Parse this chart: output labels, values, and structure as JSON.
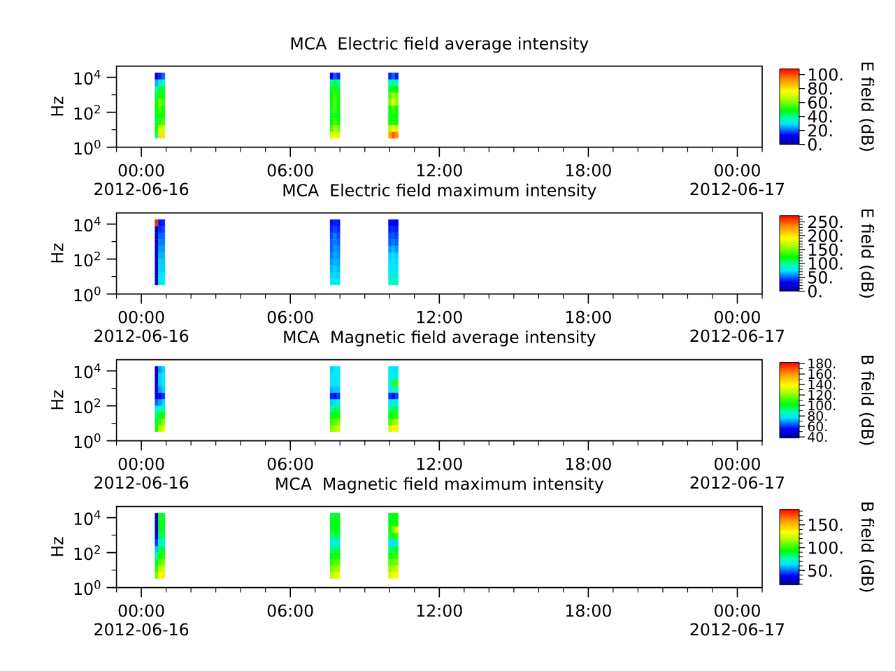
{
  "chart_data": [
    {
      "type": "scatter",
      "title": "MCA  Electric field average intensity",
      "ylabel": "Hz",
      "clabel": "E field (dB)",
      "marker": "square",
      "log": "y",
      "xlim": [
        "2012-06-15T23:00",
        "2012-06-17T01:00"
      ],
      "xticks": [
        {
          "value": "2012-06-15T23:00",
          "label": null
        },
        {
          "value": "2012-06-16T00:00",
          "label": "00:00 2012-06-16"
        },
        {
          "value": "2012-06-16T01:00",
          "label": null
        },
        {
          "value": "2012-06-16T02:00",
          "label": null
        },
        {
          "value": "2012-06-16T03:00",
          "label": null
        },
        {
          "value": "2012-06-16T04:00",
          "label": null
        },
        {
          "value": "2012-06-16T05:00",
          "label": null
        },
        {
          "value": "2012-06-16T06:00",
          "label": "06:00"
        },
        {
          "value": "2012-06-16T07:00",
          "label": null
        },
        {
          "value": "2012-06-16T08:00",
          "label": null
        },
        {
          "value": "2012-06-16T09:00",
          "label": null
        },
        {
          "value": "2012-06-16T10:00",
          "label": null
        },
        {
          "value": "2012-06-16T11:00",
          "label": null
        },
        {
          "value": "2012-06-16T12:00",
          "label": "12:00"
        },
        {
          "value": "2012-06-16T13:00",
          "label": null
        },
        {
          "value": "2012-06-16T14:00",
          "label": null
        },
        {
          "value": "2012-06-16T15:00",
          "label": null
        },
        {
          "value": "2012-06-16T16:00",
          "label": null
        },
        {
          "value": "2012-06-16T17:00",
          "label": null
        },
        {
          "value": "2012-06-16T18:00",
          "label": "18:00"
        },
        {
          "value": "2012-06-16T19:00",
          "label": null
        },
        {
          "value": "2012-06-16T20:00",
          "label": null
        },
        {
          "value": "2012-06-16T21:00",
          "label": null
        },
        {
          "value": "2012-06-16T22:00",
          "label": null
        },
        {
          "value": "2012-06-16T23:00",
          "label": null
        },
        {
          "value": "2012-06-17T00:00",
          "label": "00:00 2012-06-17"
        },
        {
          "value": "2012-06-17T01:00",
          "label": null
        }
      ],
      "ylim": [
        1,
        44000
      ],
      "yticks": [
        {
          "value": 1,
          "label": "10$^{0}$"
        },
        {
          "value": 10,
          "label": null
        },
        {
          "value": 100,
          "label": "10$^{2}$"
        },
        {
          "value": 1000,
          "label": null
        },
        {
          "value": 10000,
          "label": "10$^{4}$"
        }
      ],
      "clim": [
        0,
        108
      ],
      "cticks": [
        {
          "value": 0,
          "label": "0."
        },
        {
          "value": 20,
          "label": "20."
        },
        {
          "value": 40,
          "label": "40."
        },
        {
          "value": 60,
          "label": "60."
        },
        {
          "value": 80,
          "label": "80."
        },
        {
          "value": 100,
          "label": "100."
        }
      ],
      "x": [
        "2012-06-16T00:37",
        "2012-06-16T00:37",
        "2012-06-16T00:37",
        "2012-06-16T00:37",
        "2012-06-16T00:37",
        "2012-06-16T00:37",
        "2012-06-16T00:37",
        "2012-06-16T00:37",
        "2012-06-16T00:37",
        "2012-06-16T00:37",
        "2012-06-16T00:45",
        "2012-06-16T00:45",
        "2012-06-16T00:45",
        "2012-06-16T00:45",
        "2012-06-16T00:45",
        "2012-06-16T00:45",
        "2012-06-16T00:45",
        "2012-06-16T00:45",
        "2012-06-16T00:45",
        "2012-06-16T00:45",
        "2012-06-16T00:53",
        "2012-06-16T00:53",
        "2012-06-16T00:53",
        "2012-06-16T00:53",
        "2012-06-16T00:53",
        "2012-06-16T00:53",
        "2012-06-16T00:53",
        "2012-06-16T00:53",
        "2012-06-16T00:53",
        "2012-06-16T00:53",
        "2012-06-16T07:40",
        "2012-06-16T07:40",
        "2012-06-16T07:40",
        "2012-06-16T07:40",
        "2012-06-16T07:40",
        "2012-06-16T07:40",
        "2012-06-16T07:40",
        "2012-06-16T07:40",
        "2012-06-16T07:40",
        "2012-06-16T07:40",
        "2012-06-16T07:48",
        "2012-06-16T07:48",
        "2012-06-16T07:48",
        "2012-06-16T07:48",
        "2012-06-16T07:48",
        "2012-06-16T07:48",
        "2012-06-16T07:48",
        "2012-06-16T07:48",
        "2012-06-16T07:48",
        "2012-06-16T07:48",
        "2012-06-16T07:56",
        "2012-06-16T07:56",
        "2012-06-16T07:56",
        "2012-06-16T07:56",
        "2012-06-16T07:56",
        "2012-06-16T07:56",
        "2012-06-16T07:56",
        "2012-06-16T07:56",
        "2012-06-16T07:56",
        "2012-06-16T07:56",
        "2012-06-16T10:01",
        "2012-06-16T10:01",
        "2012-06-16T10:01",
        "2012-06-16T10:01",
        "2012-06-16T10:01",
        "2012-06-16T10:01",
        "2012-06-16T10:01",
        "2012-06-16T10:01",
        "2012-06-16T10:01",
        "2012-06-16T10:01",
        "2012-06-16T10:09",
        "2012-06-16T10:09",
        "2012-06-16T10:09",
        "2012-06-16T10:09",
        "2012-06-16T10:09",
        "2012-06-16T10:09",
        "2012-06-16T10:09",
        "2012-06-16T10:09",
        "2012-06-16T10:09",
        "2012-06-16T10:09",
        "2012-06-16T10:17",
        "2012-06-16T10:17",
        "2012-06-16T10:17",
        "2012-06-16T10:17",
        "2012-06-16T10:17",
        "2012-06-16T10:17",
        "2012-06-16T10:17",
        "2012-06-16T10:17",
        "2012-06-16T10:17",
        "2012-06-16T10:17"
      ],
      "values": [
        5,
        11.9,
        28.2,
        66.8,
        158,
        376,
        891,
        2110,
        5010,
        11900,
        5,
        11.9,
        28.2,
        66.8,
        158,
        376,
        891,
        2110,
        5010,
        11900,
        5,
        11.9,
        28.2,
        66.8,
        158,
        376,
        891,
        2110,
        5010,
        11900,
        5,
        11.9,
        28.2,
        66.8,
        158,
        376,
        891,
        2110,
        5010,
        11900,
        5,
        11.9,
        28.2,
        66.8,
        158,
        376,
        891,
        2110,
        5010,
        11900,
        5,
        11.9,
        28.2,
        66.8,
        158,
        376,
        891,
        2110,
        5010,
        11900,
        5,
        11.9,
        28.2,
        66.8,
        158,
        376,
        891,
        2110,
        5010,
        11900,
        5,
        11.9,
        28.2,
        66.8,
        158,
        376,
        891,
        2110,
        5010,
        11900,
        5,
        11.9,
        28.2,
        66.8,
        158,
        376,
        891,
        2110,
        5010,
        11900
      ],
      "cvalues": [
        40,
        50,
        45,
        48,
        48,
        48,
        45,
        40,
        25,
        8,
        80,
        70,
        52,
        50,
        55,
        60,
        50,
        45,
        30,
        15,
        80,
        70,
        55,
        50,
        50,
        55,
        50,
        45,
        38,
        20,
        70,
        55,
        48,
        45,
        45,
        48,
        48,
        45,
        40,
        10,
        75,
        65,
        55,
        52,
        55,
        58,
        55,
        50,
        45,
        20,
        72,
        60,
        50,
        48,
        48,
        50,
        50,
        45,
        40,
        15,
        90,
        65,
        50,
        48,
        50,
        60,
        55,
        45,
        35,
        15,
        98,
        75,
        52,
        50,
        55,
        72,
        65,
        50,
        40,
        20,
        92,
        70,
        50,
        48,
        50,
        62,
        60,
        48,
        35,
        15
      ]
    },
    {
      "type": "scatter",
      "title": "MCA  Electric field maximum intensity",
      "ylabel": "Hz",
      "clabel": "E field (dB)",
      "marker": "square",
      "log": "y",
      "xlim": [
        "2012-06-15T23:00",
        "2012-06-17T01:00"
      ],
      "xticks": [
        {
          "value": "2012-06-15T23:00",
          "label": null
        },
        {
          "value": "2012-06-16T00:00",
          "label": "00:00 2012-06-16"
        },
        {
          "value": "2012-06-16T01:00",
          "label": null
        },
        {
          "value": "2012-06-16T02:00",
          "label": null
        },
        {
          "value": "2012-06-16T03:00",
          "label": null
        },
        {
          "value": "2012-06-16T04:00",
          "label": null
        },
        {
          "value": "2012-06-16T05:00",
          "label": null
        },
        {
          "value": "2012-06-16T06:00",
          "label": "06:00"
        },
        {
          "value": "2012-06-16T07:00",
          "label": null
        },
        {
          "value": "2012-06-16T08:00",
          "label": null
        },
        {
          "value": "2012-06-16T09:00",
          "label": null
        },
        {
          "value": "2012-06-16T10:00",
          "label": null
        },
        {
          "value": "2012-06-16T11:00",
          "label": null
        },
        {
          "value": "2012-06-16T12:00",
          "label": "12:00"
        },
        {
          "value": "2012-06-16T13:00",
          "label": null
        },
        {
          "value": "2012-06-16T14:00",
          "label": null
        },
        {
          "value": "2012-06-16T15:00",
          "label": null
        },
        {
          "value": "2012-06-16T16:00",
          "label": null
        },
        {
          "value": "2012-06-16T17:00",
          "label": null
        },
        {
          "value": "2012-06-16T18:00",
          "label": "18:00"
        },
        {
          "value": "2012-06-16T19:00",
          "label": null
        },
        {
          "value": "2012-06-16T20:00",
          "label": null
        },
        {
          "value": "2012-06-16T21:00",
          "label": null
        },
        {
          "value": "2012-06-16T22:00",
          "label": null
        },
        {
          "value": "2012-06-16T23:00",
          "label": null
        },
        {
          "value": "2012-06-17T00:00",
          "label": "00:00 2012-06-17"
        },
        {
          "value": "2012-06-17T01:00",
          "label": null
        }
      ],
      "ylim": [
        1,
        44000
      ],
      "yticks": [
        {
          "value": 1,
          "label": "10$^{0}$"
        },
        {
          "value": 10,
          "label": null
        },
        {
          "value": 100,
          "label": "10$^{2}$"
        },
        {
          "value": 1000,
          "label": null
        },
        {
          "value": 10000,
          "label": "10$^{4}$"
        }
      ],
      "clim": [
        0,
        272
      ],
      "cticks": [
        {
          "value": 0,
          "label": "0."
        },
        {
          "value": 10,
          "label": null
        },
        {
          "value": 20,
          "label": null
        },
        {
          "value": 30,
          "label": null
        },
        {
          "value": 40,
          "label": null
        },
        {
          "value": 50,
          "label": "50."
        },
        {
          "value": 60,
          "label": null
        },
        {
          "value": 70,
          "label": null
        },
        {
          "value": 80,
          "label": null
        },
        {
          "value": 90,
          "label": null
        },
        {
          "value": 100,
          "label": "100."
        },
        {
          "value": 110,
          "label": null
        },
        {
          "value": 120,
          "label": null
        },
        {
          "value": 130,
          "label": null
        },
        {
          "value": 140,
          "label": null
        },
        {
          "value": 150,
          "label": "150."
        },
        {
          "value": 160,
          "label": null
        },
        {
          "value": 170,
          "label": null
        },
        {
          "value": 180,
          "label": null
        },
        {
          "value": 190,
          "label": null
        },
        {
          "value": 200,
          "label": "200."
        },
        {
          "value": 210,
          "label": null
        },
        {
          "value": 220,
          "label": null
        },
        {
          "value": 230,
          "label": null
        },
        {
          "value": 240,
          "label": null
        },
        {
          "value": 250,
          "label": "250."
        },
        {
          "value": 260,
          "label": null
        },
        {
          "value": 270,
          "label": null
        }
      ],
      "x": [
        "2012-06-16T00:37",
        "2012-06-16T00:37",
        "2012-06-16T00:37",
        "2012-06-16T00:37",
        "2012-06-16T00:37",
        "2012-06-16T00:37",
        "2012-06-16T00:37",
        "2012-06-16T00:37",
        "2012-06-16T00:37",
        "2012-06-16T00:37",
        "2012-06-16T00:45",
        "2012-06-16T00:45",
        "2012-06-16T00:45",
        "2012-06-16T00:45",
        "2012-06-16T00:45",
        "2012-06-16T00:45",
        "2012-06-16T00:45",
        "2012-06-16T00:45",
        "2012-06-16T00:45",
        "2012-06-16T00:45",
        "2012-06-16T00:53",
        "2012-06-16T00:53",
        "2012-06-16T00:53",
        "2012-06-16T00:53",
        "2012-06-16T00:53",
        "2012-06-16T00:53",
        "2012-06-16T00:53",
        "2012-06-16T00:53",
        "2012-06-16T00:53",
        "2012-06-16T00:53",
        "2012-06-16T07:40",
        "2012-06-16T07:40",
        "2012-06-16T07:40",
        "2012-06-16T07:40",
        "2012-06-16T07:40",
        "2012-06-16T07:40",
        "2012-06-16T07:40",
        "2012-06-16T07:40",
        "2012-06-16T07:40",
        "2012-06-16T07:40",
        "2012-06-16T07:48",
        "2012-06-16T07:48",
        "2012-06-16T07:48",
        "2012-06-16T07:48",
        "2012-06-16T07:48",
        "2012-06-16T07:48",
        "2012-06-16T07:48",
        "2012-06-16T07:48",
        "2012-06-16T07:48",
        "2012-06-16T07:48",
        "2012-06-16T07:56",
        "2012-06-16T07:56",
        "2012-06-16T07:56",
        "2012-06-16T07:56",
        "2012-06-16T07:56",
        "2012-06-16T07:56",
        "2012-06-16T07:56",
        "2012-06-16T07:56",
        "2012-06-16T07:56",
        "2012-06-16T07:56",
        "2012-06-16T10:01",
        "2012-06-16T10:01",
        "2012-06-16T10:01",
        "2012-06-16T10:01",
        "2012-06-16T10:01",
        "2012-06-16T10:01",
        "2012-06-16T10:01",
        "2012-06-16T10:01",
        "2012-06-16T10:01",
        "2012-06-16T10:01",
        "2012-06-16T10:09",
        "2012-06-16T10:09",
        "2012-06-16T10:09",
        "2012-06-16T10:09",
        "2012-06-16T10:09",
        "2012-06-16T10:09",
        "2012-06-16T10:09",
        "2012-06-16T10:09",
        "2012-06-16T10:09",
        "2012-06-16T10:09",
        "2012-06-16T10:17",
        "2012-06-16T10:17",
        "2012-06-16T10:17",
        "2012-06-16T10:17",
        "2012-06-16T10:17",
        "2012-06-16T10:17",
        "2012-06-16T10:17",
        "2012-06-16T10:17",
        "2012-06-16T10:17",
        "2012-06-16T10:17"
      ],
      "values": [
        5,
        11.9,
        28.2,
        66.8,
        158,
        376,
        891,
        2110,
        5010,
        11900,
        5,
        11.9,
        28.2,
        66.8,
        158,
        376,
        891,
        2110,
        5010,
        11900,
        5,
        11.9,
        28.2,
        66.8,
        158,
        376,
        891,
        2110,
        5010,
        11900,
        5,
        11.9,
        28.2,
        66.8,
        158,
        376,
        891,
        2110,
        5010,
        11900,
        5,
        11.9,
        28.2,
        66.8,
        158,
        376,
        891,
        2110,
        5010,
        11900,
        5,
        11.9,
        28.2,
        66.8,
        158,
        376,
        891,
        2110,
        5010,
        11900,
        5,
        11.9,
        28.2,
        66.8,
        158,
        376,
        891,
        2110,
        5010,
        11900,
        5,
        11.9,
        28.2,
        66.8,
        158,
        376,
        891,
        2110,
        5010,
        11900,
        5,
        11.9,
        28.2,
        66.8,
        158,
        376,
        891,
        2110,
        5010,
        11900
      ],
      "cvalues": [
        15,
        15,
        15,
        15,
        15,
        15,
        15,
        15,
        15,
        260,
        80,
        75,
        72,
        70,
        65,
        60,
        55,
        50,
        40,
        35,
        78,
        75,
        70,
        68,
        65,
        60,
        55,
        50,
        45,
        38,
        75,
        70,
        65,
        60,
        55,
        50,
        50,
        45,
        40,
        35,
        78,
        72,
        70,
        65,
        62,
        60,
        55,
        55,
        45,
        38,
        75,
        70,
        65,
        62,
        58,
        55,
        50,
        45,
        40,
        35,
        90,
        80,
        75,
        72,
        70,
        60,
        50,
        45,
        38,
        30,
        95,
        82,
        78,
        75,
        72,
        65,
        55,
        48,
        40,
        32,
        90,
        80,
        75,
        72,
        70,
        60,
        50,
        45,
        38,
        30
      ]
    },
    {
      "type": "scatter",
      "title": "MCA  Magnetic field average intensity",
      "ylabel": "Hz",
      "clabel": "B field (dB)",
      "marker": "square",
      "log": "y",
      "xlim": [
        "2012-06-15T23:00",
        "2012-06-17T01:00"
      ],
      "xticks": [
        {
          "value": "2012-06-15T23:00",
          "label": null
        },
        {
          "value": "2012-06-16T00:00",
          "label": "00:00 2012-06-16"
        },
        {
          "value": "2012-06-16T01:00",
          "label": null
        },
        {
          "value": "2012-06-16T02:00",
          "label": null
        },
        {
          "value": "2012-06-16T03:00",
          "label": null
        },
        {
          "value": "2012-06-16T04:00",
          "label": null
        },
        {
          "value": "2012-06-16T05:00",
          "label": null
        },
        {
          "value": "2012-06-16T06:00",
          "label": "06:00"
        },
        {
          "value": "2012-06-16T07:00",
          "label": null
        },
        {
          "value": "2012-06-16T08:00",
          "label": null
        },
        {
          "value": "2012-06-16T09:00",
          "label": null
        },
        {
          "value": "2012-06-16T10:00",
          "label": null
        },
        {
          "value": "2012-06-16T11:00",
          "label": null
        },
        {
          "value": "2012-06-16T12:00",
          "label": "12:00"
        },
        {
          "value": "2012-06-16T13:00",
          "label": null
        },
        {
          "value": "2012-06-16T14:00",
          "label": null
        },
        {
          "value": "2012-06-16T15:00",
          "label": null
        },
        {
          "value": "2012-06-16T16:00",
          "label": null
        },
        {
          "value": "2012-06-16T17:00",
          "label": null
        },
        {
          "value": "2012-06-16T18:00",
          "label": "18:00"
        },
        {
          "value": "2012-06-16T19:00",
          "label": null
        },
        {
          "value": "2012-06-16T20:00",
          "label": null
        },
        {
          "value": "2012-06-16T21:00",
          "label": null
        },
        {
          "value": "2012-06-16T22:00",
          "label": null
        },
        {
          "value": "2012-06-16T23:00",
          "label": null
        },
        {
          "value": "2012-06-17T00:00",
          "label": "00:00 2012-06-17"
        },
        {
          "value": "2012-06-17T01:00",
          "label": null
        }
      ],
      "ylim": [
        1,
        44000
      ],
      "yticks": [
        {
          "value": 1,
          "label": "10$^{0}$"
        },
        {
          "value": 10,
          "label": null
        },
        {
          "value": 100,
          "label": "10$^{2}$"
        },
        {
          "value": 1000,
          "label": null
        },
        {
          "value": 10000,
          "label": "10$^{4}$"
        }
      ],
      "clim": [
        38,
        182
      ],
      "cticks": [
        {
          "value": 40,
          "label": "40."
        },
        {
          "value": 50,
          "label": null
        },
        {
          "value": 60,
          "label": "60."
        },
        {
          "value": 70,
          "label": null
        },
        {
          "value": 80,
          "label": "80."
        },
        {
          "value": 90,
          "label": null
        },
        {
          "value": 100,
          "label": "100."
        },
        {
          "value": 110,
          "label": null
        },
        {
          "value": 120,
          "label": "120."
        },
        {
          "value": 130,
          "label": null
        },
        {
          "value": 140,
          "label": "140."
        },
        {
          "value": 150,
          "label": null
        },
        {
          "value": 160,
          "label": "160."
        },
        {
          "value": 170,
          "label": null
        },
        {
          "value": 180,
          "label": "180."
        }
      ],
      "x": [
        "2012-06-16T00:37",
        "2012-06-16T00:37",
        "2012-06-16T00:37",
        "2012-06-16T00:37",
        "2012-06-16T00:37",
        "2012-06-16T00:37",
        "2012-06-16T00:37",
        "2012-06-16T00:37",
        "2012-06-16T00:37",
        "2012-06-16T00:37",
        "2012-06-16T00:45",
        "2012-06-16T00:45",
        "2012-06-16T00:45",
        "2012-06-16T00:45",
        "2012-06-16T00:45",
        "2012-06-16T00:45",
        "2012-06-16T00:45",
        "2012-06-16T00:45",
        "2012-06-16T00:45",
        "2012-06-16T00:45",
        "2012-06-16T00:53",
        "2012-06-16T00:53",
        "2012-06-16T00:53",
        "2012-06-16T00:53",
        "2012-06-16T00:53",
        "2012-06-16T00:53",
        "2012-06-16T00:53",
        "2012-06-16T00:53",
        "2012-06-16T00:53",
        "2012-06-16T00:53",
        "2012-06-16T07:40",
        "2012-06-16T07:40",
        "2012-06-16T07:40",
        "2012-06-16T07:40",
        "2012-06-16T07:40",
        "2012-06-16T07:40",
        "2012-06-16T07:40",
        "2012-06-16T07:40",
        "2012-06-16T07:40",
        "2012-06-16T07:40",
        "2012-06-16T07:48",
        "2012-06-16T07:48",
        "2012-06-16T07:48",
        "2012-06-16T07:48",
        "2012-06-16T07:48",
        "2012-06-16T07:48",
        "2012-06-16T07:48",
        "2012-06-16T07:48",
        "2012-06-16T07:48",
        "2012-06-16T07:48",
        "2012-06-16T07:56",
        "2012-06-16T07:56",
        "2012-06-16T07:56",
        "2012-06-16T07:56",
        "2012-06-16T07:56",
        "2012-06-16T07:56",
        "2012-06-16T07:56",
        "2012-06-16T07:56",
        "2012-06-16T07:56",
        "2012-06-16T07:56",
        "2012-06-16T10:01",
        "2012-06-16T10:01",
        "2012-06-16T10:01",
        "2012-06-16T10:01",
        "2012-06-16T10:01",
        "2012-06-16T10:01",
        "2012-06-16T10:01",
        "2012-06-16T10:01",
        "2012-06-16T10:01",
        "2012-06-16T10:01",
        "2012-06-16T10:09",
        "2012-06-16T10:09",
        "2012-06-16T10:09",
        "2012-06-16T10:09",
        "2012-06-16T10:09",
        "2012-06-16T10:09",
        "2012-06-16T10:09",
        "2012-06-16T10:09",
        "2012-06-16T10:09",
        "2012-06-16T10:09",
        "2012-06-16T10:17",
        "2012-06-16T10:17",
        "2012-06-16T10:17",
        "2012-06-16T10:17",
        "2012-06-16T10:17",
        "2012-06-16T10:17",
        "2012-06-16T10:17",
        "2012-06-16T10:17",
        "2012-06-16T10:17",
        "2012-06-16T10:17"
      ],
      "values": [
        5,
        11.9,
        28.2,
        66.8,
        158,
        376,
        891,
        2110,
        5010,
        11900,
        5,
        11.9,
        28.2,
        66.8,
        158,
        376,
        891,
        2110,
        5010,
        11900,
        5,
        11.9,
        28.2,
        66.8,
        158,
        376,
        891,
        2110,
        5010,
        11900,
        5,
        11.9,
        28.2,
        66.8,
        158,
        376,
        891,
        2110,
        5010,
        11900,
        5,
        11.9,
        28.2,
        66.8,
        158,
        376,
        891,
        2110,
        5010,
        11900,
        5,
        11.9,
        28.2,
        66.8,
        158,
        376,
        891,
        2110,
        5010,
        11900,
        5,
        11.9,
        28.2,
        66.8,
        158,
        376,
        891,
        2110,
        5010,
        11900,
        5,
        11.9,
        28.2,
        66.8,
        158,
        376,
        891,
        2110,
        5010,
        11900,
        5,
        11.9,
        28.2,
        66.8,
        158,
        376,
        891,
        2110,
        5010,
        11900
      ],
      "cvalues": [
        105,
        100,
        95,
        80,
        65,
        50,
        52,
        48,
        45,
        44,
        125,
        110,
        100,
        85,
        70,
        55,
        70,
        75,
        75,
        70,
        135,
        120,
        105,
        90,
        75,
        60,
        75,
        78,
        78,
        75,
        120,
        110,
        100,
        90,
        75,
        58,
        72,
        77,
        77,
        75,
        125,
        115,
        105,
        95,
        78,
        56,
        74,
        78,
        78,
        77,
        130,
        118,
        105,
        95,
        80,
        60,
        74,
        78,
        78,
        77,
        130,
        112,
        102,
        92,
        78,
        60,
        78,
        85,
        78,
        77,
        140,
        120,
        105,
        95,
        80,
        55,
        85,
        95,
        80,
        77,
        140,
        125,
        108,
        95,
        82,
        62,
        90,
        110,
        80,
        77
      ]
    },
    {
      "type": "scatter",
      "title": "MCA  Magnetic field maximum intensity",
      "ylabel": "Hz",
      "clabel": "B field (dB)",
      "marker": "square",
      "log": "y",
      "xlim": [
        "2012-06-15T23:00",
        "2012-06-17T01:00"
      ],
      "xticks": [
        {
          "value": "2012-06-15T23:00",
          "label": null
        },
        {
          "value": "2012-06-16T00:00",
          "label": "00:00 2012-06-16"
        },
        {
          "value": "2012-06-16T01:00",
          "label": null
        },
        {
          "value": "2012-06-16T02:00",
          "label": null
        },
        {
          "value": "2012-06-16T03:00",
          "label": null
        },
        {
          "value": "2012-06-16T04:00",
          "label": null
        },
        {
          "value": "2012-06-16T05:00",
          "label": null
        },
        {
          "value": "2012-06-16T06:00",
          "label": "06:00"
        },
        {
          "value": "2012-06-16T07:00",
          "label": null
        },
        {
          "value": "2012-06-16T08:00",
          "label": null
        },
        {
          "value": "2012-06-16T09:00",
          "label": null
        },
        {
          "value": "2012-06-16T10:00",
          "label": null
        },
        {
          "value": "2012-06-16T11:00",
          "label": null
        },
        {
          "value": "2012-06-16T12:00",
          "label": "12:00"
        },
        {
          "value": "2012-06-16T13:00",
          "label": null
        },
        {
          "value": "2012-06-16T14:00",
          "label": null
        },
        {
          "value": "2012-06-16T15:00",
          "label": null
        },
        {
          "value": "2012-06-16T16:00",
          "label": null
        },
        {
          "value": "2012-06-16T17:00",
          "label": null
        },
        {
          "value": "2012-06-16T18:00",
          "label": "18:00"
        },
        {
          "value": "2012-06-16T19:00",
          "label": null
        },
        {
          "value": "2012-06-16T20:00",
          "label": null
        },
        {
          "value": "2012-06-16T21:00",
          "label": null
        },
        {
          "value": "2012-06-16T22:00",
          "label": null
        },
        {
          "value": "2012-06-16T23:00",
          "label": null
        },
        {
          "value": "2012-06-17T00:00",
          "label": "00:00 2012-06-17"
        },
        {
          "value": "2012-06-17T01:00",
          "label": null
        }
      ],
      "ylim": [
        1,
        44000
      ],
      "yticks": [
        {
          "value": 1,
          "label": "10$^{0}$"
        },
        {
          "value": 10,
          "label": null
        },
        {
          "value": 100,
          "label": "10$^{2}$"
        },
        {
          "value": 1000,
          "label": null
        },
        {
          "value": 10000,
          "label": "10$^{4}$"
        }
      ],
      "clim": [
        19,
        184
      ],
      "cticks": [
        {
          "value": 20,
          "label": null
        },
        {
          "value": 30,
          "label": null
        },
        {
          "value": 40,
          "label": null
        },
        {
          "value": 50,
          "label": "50."
        },
        {
          "value": 60,
          "label": null
        },
        {
          "value": 70,
          "label": null
        },
        {
          "value": 80,
          "label": null
        },
        {
          "value": 90,
          "label": null
        },
        {
          "value": 100,
          "label": "100."
        },
        {
          "value": 110,
          "label": null
        },
        {
          "value": 120,
          "label": null
        },
        {
          "value": 130,
          "label": null
        },
        {
          "value": 140,
          "label": null
        },
        {
          "value": 150,
          "label": "150."
        },
        {
          "value": 160,
          "label": null
        },
        {
          "value": 170,
          "label": null
        },
        {
          "value": 180,
          "label": null
        }
      ],
      "x": [
        "2012-06-16T00:37",
        "2012-06-16T00:37",
        "2012-06-16T00:37",
        "2012-06-16T00:37",
        "2012-06-16T00:37",
        "2012-06-16T00:37",
        "2012-06-16T00:37",
        "2012-06-16T00:37",
        "2012-06-16T00:37",
        "2012-06-16T00:37",
        "2012-06-16T00:45",
        "2012-06-16T00:45",
        "2012-06-16T00:45",
        "2012-06-16T00:45",
        "2012-06-16T00:45",
        "2012-06-16T00:45",
        "2012-06-16T00:45",
        "2012-06-16T00:45",
        "2012-06-16T00:45",
        "2012-06-16T00:45",
        "2012-06-16T00:53",
        "2012-06-16T00:53",
        "2012-06-16T00:53",
        "2012-06-16T00:53",
        "2012-06-16T00:53",
        "2012-06-16T00:53",
        "2012-06-16T00:53",
        "2012-06-16T00:53",
        "2012-06-16T00:53",
        "2012-06-16T00:53",
        "2012-06-16T07:40",
        "2012-06-16T07:40",
        "2012-06-16T07:40",
        "2012-06-16T07:40",
        "2012-06-16T07:40",
        "2012-06-16T07:40",
        "2012-06-16T07:40",
        "2012-06-16T07:40",
        "2012-06-16T07:40",
        "2012-06-16T07:40",
        "2012-06-16T07:48",
        "2012-06-16T07:48",
        "2012-06-16T07:48",
        "2012-06-16T07:48",
        "2012-06-16T07:48",
        "2012-06-16T07:48",
        "2012-06-16T07:48",
        "2012-06-16T07:48",
        "2012-06-16T07:48",
        "2012-06-16T07:48",
        "2012-06-16T07:56",
        "2012-06-16T07:56",
        "2012-06-16T07:56",
        "2012-06-16T07:56",
        "2012-06-16T07:56",
        "2012-06-16T07:56",
        "2012-06-16T07:56",
        "2012-06-16T07:56",
        "2012-06-16T07:56",
        "2012-06-16T07:56",
        "2012-06-16T10:01",
        "2012-06-16T10:01",
        "2012-06-16T10:01",
        "2012-06-16T10:01",
        "2012-06-16T10:01",
        "2012-06-16T10:01",
        "2012-06-16T10:01",
        "2012-06-16T10:01",
        "2012-06-16T10:01",
        "2012-06-16T10:01",
        "2012-06-16T10:09",
        "2012-06-16T10:09",
        "2012-06-16T10:09",
        "2012-06-16T10:09",
        "2012-06-16T10:09",
        "2012-06-16T10:09",
        "2012-06-16T10:09",
        "2012-06-16T10:09",
        "2012-06-16T10:09",
        "2012-06-16T10:09",
        "2012-06-16T10:17",
        "2012-06-16T10:17",
        "2012-06-16T10:17",
        "2012-06-16T10:17",
        "2012-06-16T10:17",
        "2012-06-16T10:17",
        "2012-06-16T10:17",
        "2012-06-16T10:17",
        "2012-06-16T10:17",
        "2012-06-16T10:17"
      ],
      "values": [
        5,
        11.9,
        28.2,
        66.8,
        158,
        376,
        891,
        2110,
        5010,
        11900,
        5,
        11.9,
        28.2,
        66.8,
        158,
        376,
        891,
        2110,
        5010,
        11900,
        5,
        11.9,
        28.2,
        66.8,
        158,
        376,
        891,
        2110,
        5010,
        11900,
        5,
        11.9,
        28.2,
        66.8,
        158,
        376,
        891,
        2110,
        5010,
        11900,
        5,
        11.9,
        28.2,
        66.8,
        158,
        376,
        891,
        2110,
        5010,
        11900,
        5,
        11.9,
        28.2,
        66.8,
        158,
        376,
        891,
        2110,
        5010,
        11900,
        5,
        11.9,
        28.2,
        66.8,
        158,
        376,
        891,
        2110,
        5010,
        11900,
        5,
        11.9,
        28.2,
        66.8,
        158,
        376,
        891,
        2110,
        5010,
        11900,
        5,
        11.9,
        28.2,
        66.8,
        158,
        376,
        891,
        2110,
        5010,
        11900
      ],
      "cvalues": [
        110,
        100,
        90,
        80,
        60,
        45,
        35,
        28,
        25,
        25,
        135,
        120,
        105,
        95,
        85,
        70,
        85,
        90,
        90,
        88,
        138,
        125,
        110,
        98,
        88,
        72,
        85,
        90,
        92,
        90,
        120,
        110,
        100,
        92,
        80,
        66,
        82,
        90,
        90,
        88,
        128,
        115,
        105,
        95,
        85,
        66,
        85,
        92,
        92,
        90,
        130,
        118,
        105,
        95,
        85,
        68,
        85,
        92,
        92,
        90,
        125,
        115,
        105,
        95,
        82,
        66,
        85,
        95,
        92,
        90,
        132,
        120,
        108,
        98,
        85,
        64,
        95,
        110,
        95,
        92,
        135,
        125,
        110,
        100,
        88,
        68,
        100,
        140,
        95,
        92
      ]
    }
  ]
}
